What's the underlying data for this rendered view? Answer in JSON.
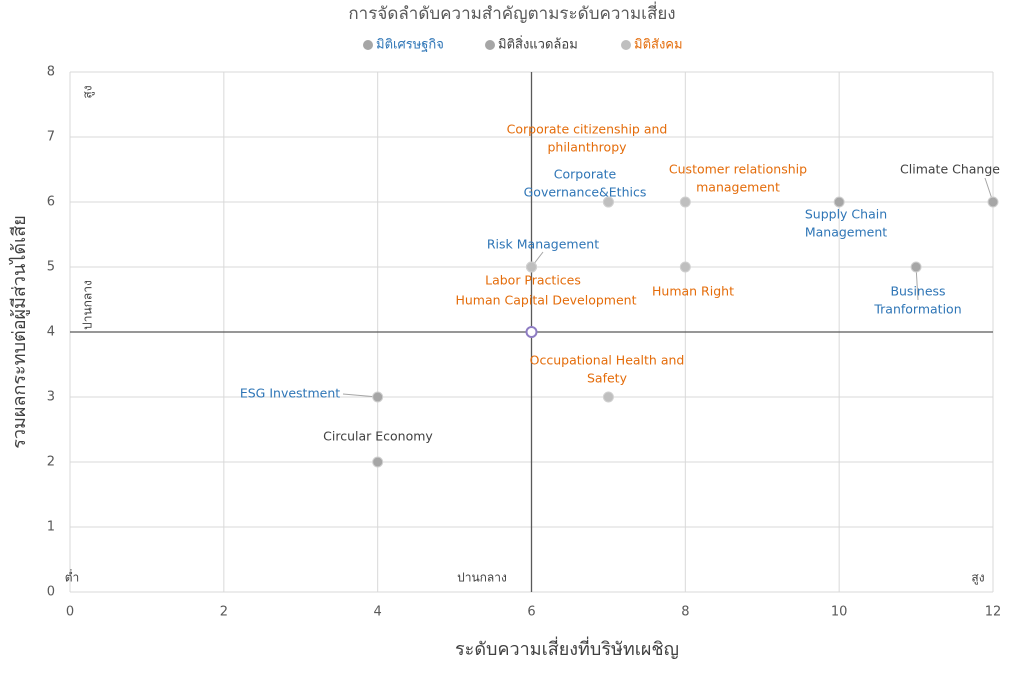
{
  "chart_data": {
    "type": "scatter",
    "title": "การจัดลำดับความสำคัญตามระดับความเสี่ยง",
    "x_label": "ระดับความเสี่ยงที่บริษัทเผชิญ",
    "y_label": "รวมผลกระทบต่อผู้มีส่วนได้เสีย",
    "xlim": [
      0,
      12
    ],
    "xticks": [
      0,
      2,
      4,
      6,
      8,
      10,
      12
    ],
    "ylim": [
      0,
      8
    ],
    "yticks": [
      0,
      1,
      2,
      3,
      4,
      5,
      6,
      7,
      8
    ],
    "grid": true,
    "quadrant": {
      "x": 6,
      "y": 4
    },
    "annotations": [
      "สูง",
      "ปานกลาง",
      "ต่ำ",
      "ปานกลาง",
      "สูง"
    ],
    "series": [
      {
        "name": "มิติเศรษฐกิจ",
        "color": "#2e75b6",
        "marker_color": "#a6a6a6",
        "x": [
          7,
          6,
          10,
          11,
          4
        ],
        "y": [
          6,
          5,
          6,
          5,
          3
        ],
        "labels": [
          [
            "Corporate",
            "Governance&Ethics"
          ],
          [
            "Risk Management"
          ],
          [
            "Supply Chain",
            "Management"
          ],
          [
            "Business",
            "Tranformation"
          ],
          [
            "ESG Investment"
          ]
        ]
      },
      {
        "name": "มิติสิ่งแวดล้อม",
        "color": "#404040",
        "marker_color": "#a6a6a6",
        "x": [
          12,
          4
        ],
        "y": [
          6,
          2
        ],
        "labels": [
          [
            "Climate Change"
          ],
          [
            "Circular Economy"
          ]
        ]
      },
      {
        "name": "มิติสังคม",
        "color": "#e46c0a",
        "marker_color": "#bfbfbf",
        "x": [
          7,
          8,
          8,
          6,
          6,
          7
        ],
        "y": [
          6,
          6,
          5,
          5,
          5,
          3
        ],
        "labels": [
          [
            "Corporate citizenship and",
            "philanthropy"
          ],
          [
            "Customer relationship",
            "management"
          ],
          [
            "Human Right"
          ],
          [
            "Labor Practices"
          ],
          [
            "Human Capital Development"
          ],
          [
            "Occupational Health and",
            "Safety"
          ]
        ]
      }
    ]
  }
}
